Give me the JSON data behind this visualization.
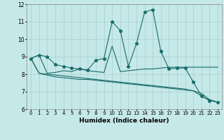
{
  "xlabel": "Humidex (Indice chaleur)",
  "xlim": [
    -0.5,
    23.5
  ],
  "ylim": [
    6,
    12
  ],
  "yticks": [
    6,
    7,
    8,
    9,
    10,
    11,
    12
  ],
  "xticks": [
    0,
    1,
    2,
    3,
    4,
    5,
    6,
    7,
    8,
    9,
    10,
    11,
    12,
    13,
    14,
    15,
    16,
    17,
    18,
    19,
    20,
    21,
    22,
    23
  ],
  "background_color": "#c5e8e8",
  "grid_color": "#a0c8c8",
  "line_color": "#1a6b6b",
  "line1_x": [
    0,
    1,
    2,
    3,
    4,
    5,
    6,
    7,
    8,
    9,
    10,
    11,
    12,
    13,
    14,
    15,
    16,
    17,
    18,
    19,
    20,
    21,
    22,
    23
  ],
  "line1_y": [
    8.9,
    9.1,
    9.0,
    8.55,
    8.45,
    8.35,
    8.3,
    8.25,
    8.8,
    8.9,
    11.0,
    10.5,
    8.45,
    9.75,
    11.55,
    11.7,
    9.3,
    8.3,
    8.35,
    8.35,
    7.55,
    6.75,
    6.5,
    6.4
  ],
  "line2_x": [
    0,
    1,
    2,
    3,
    4,
    5,
    6,
    7,
    8,
    9,
    10,
    11,
    12,
    13,
    14,
    15,
    16,
    17,
    18,
    19,
    20,
    21,
    22,
    23
  ],
  "line2_y": [
    8.9,
    9.1,
    8.05,
    8.1,
    8.2,
    8.15,
    8.3,
    8.2,
    8.15,
    8.1,
    9.6,
    8.15,
    8.2,
    8.25,
    8.3,
    8.3,
    8.35,
    8.4,
    8.4,
    8.4,
    8.4,
    8.4,
    8.4,
    8.4
  ],
  "line3_x": [
    0,
    1,
    2,
    3,
    4,
    5,
    6,
    7,
    8,
    9,
    10,
    11,
    12,
    13,
    14,
    15,
    16,
    17,
    18,
    19,
    20,
    21,
    22,
    23
  ],
  "line3_y": [
    8.9,
    8.05,
    7.95,
    7.85,
    7.8,
    7.75,
    7.7,
    7.7,
    7.65,
    7.6,
    7.55,
    7.5,
    7.45,
    7.4,
    7.35,
    7.3,
    7.25,
    7.2,
    7.15,
    7.1,
    7.05,
    6.9,
    6.55,
    6.4
  ],
  "line4_x": [
    0,
    1,
    2,
    3,
    4,
    5,
    6,
    7,
    8,
    9,
    10,
    11,
    12,
    13,
    14,
    15,
    16,
    17,
    18,
    19,
    20,
    21,
    22,
    23
  ],
  "line4_y": [
    8.9,
    8.05,
    8.0,
    7.95,
    7.9,
    7.85,
    7.8,
    7.75,
    7.7,
    7.65,
    7.6,
    7.55,
    7.5,
    7.45,
    7.4,
    7.35,
    7.3,
    7.25,
    7.2,
    7.15,
    7.05,
    6.75,
    6.5,
    6.4
  ],
  "marker_style": "*",
  "marker_size": 3.5,
  "linewidth": 0.8
}
